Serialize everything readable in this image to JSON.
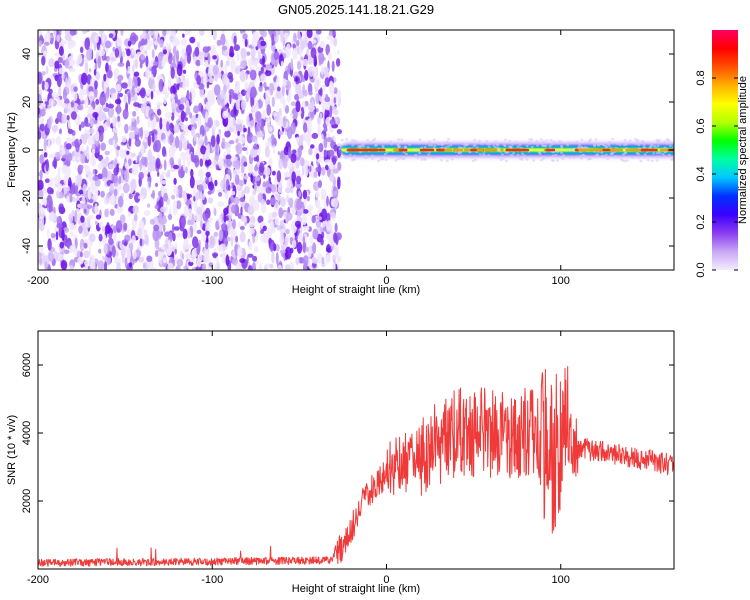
{
  "title": "GN05.2025.141.18.21.G29",
  "chart_data": [
    {
      "type": "heatmap",
      "xlabel": "Height of straight line (km)",
      "ylabel": "Frequency (Hz)",
      "xlim": [
        -200,
        165
      ],
      "ylim": [
        -50,
        50
      ],
      "xticks": [
        -200,
        -100,
        0,
        100
      ],
      "yticks": [
        -40,
        -20,
        0,
        20,
        40
      ],
      "grid": false,
      "noise_region_x": [
        -200,
        -27
      ],
      "signal_band_x": [
        -27,
        165
      ],
      "signal_center_freq": 0,
      "colorbar": {
        "label": "Normalized spectral amplitude",
        "range": [
          0.0,
          1.0
        ],
        "ticks": [
          "0.0",
          "0.2",
          "0.4",
          "0.6",
          "0.8"
        ],
        "colors": [
          "#f4ecff",
          "#c9a8f5",
          "#8a3cf0",
          "#3a00ff",
          "#0030ff",
          "#00c8ff",
          "#00ffa0",
          "#00ff00",
          "#b4ff00",
          "#ffff00",
          "#ffb000",
          "#ff5000",
          "#ff0000",
          "#ff0060"
        ]
      }
    },
    {
      "type": "line",
      "xlabel": "Height of straight line (km)",
      "ylabel": "SNR (10 * v/v)",
      "xlim": [
        -200,
        165
      ],
      "ylim": [
        0,
        7000
      ],
      "xticks": [
        -200,
        -100,
        0,
        100
      ],
      "yticks": [
        2000,
        4000,
        6000
      ],
      "grid": false,
      "line_color": "#f03a3a",
      "anchors": [
        [
          -200,
          180
        ],
        [
          -160,
          200
        ],
        [
          -120,
          210
        ],
        [
          -80,
          230
        ],
        [
          -40,
          250
        ],
        [
          -32,
          260
        ],
        [
          -25,
          700
        ],
        [
          -15,
          1800
        ],
        [
          -8,
          2400
        ],
        [
          0,
          2800
        ],
        [
          10,
          3100
        ],
        [
          20,
          3500
        ],
        [
          35,
          3900
        ],
        [
          50,
          4050
        ],
        [
          70,
          4000
        ],
        [
          85,
          3950
        ],
        [
          92,
          3600
        ],
        [
          96,
          3200
        ],
        [
          100,
          3900
        ],
        [
          105,
          3700
        ],
        [
          110,
          3550
        ],
        [
          130,
          3400
        ],
        [
          150,
          3200
        ],
        [
          165,
          3050
        ]
      ]
    }
  ]
}
